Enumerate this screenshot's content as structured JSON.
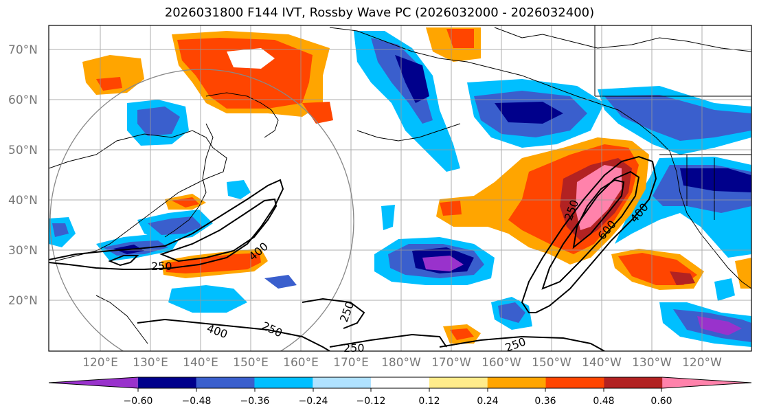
{
  "title": "2026031800 F144 IVT, Rossby Wave PC (2026032000 - 2026032400)",
  "map": {
    "lat_labels": [
      "70°N",
      "60°N",
      "50°N",
      "40°N",
      "30°N",
      "20°N"
    ],
    "lon_labels": [
      "120°E",
      "130°E",
      "140°E",
      "150°E",
      "160°E",
      "170°E",
      "180°W",
      "170°W",
      "160°W",
      "150°W",
      "140°W",
      "130°W",
      "120°W"
    ]
  },
  "contour_labels": [
    "250",
    "400",
    "250",
    "250",
    "400",
    "250",
    "250",
    "250",
    "600",
    "400"
  ],
  "colorbar": {
    "tick_labels": [
      "−0.60",
      "−0.48",
      "−0.36",
      "−0.24",
      "−0.12",
      "0.12",
      "0.24",
      "0.36",
      "0.48",
      "0.60"
    ],
    "colors": [
      "#9932CC",
      "#00008B",
      "#3A5FCD",
      "#00BFFF",
      "#B0E2FF",
      "#FFFFFF",
      "#FFEC8B",
      "#FFA500",
      "#FF4500",
      "#B22222",
      "#FF82AB"
    ]
  }
}
